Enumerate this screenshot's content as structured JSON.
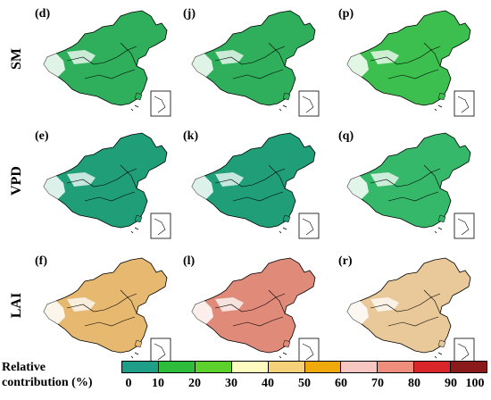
{
  "rows": [
    {
      "label": "SM",
      "panels": [
        "(d)",
        "(j)",
        "(p)"
      ],
      "dominant": [
        "#2fae5c",
        "#2fae5c",
        "#3cbf4e"
      ]
    },
    {
      "label": "VPD",
      "panels": [
        "(e)",
        "(k)",
        "(q)"
      ],
      "dominant": [
        "#1f9e77",
        "#1f9e77",
        "#35b86a"
      ]
    },
    {
      "label": "LAI",
      "panels": [
        "(f)",
        "(l)",
        "(r)"
      ],
      "dominant": [
        "#e6b870",
        "#e08a7a",
        "#e9c99a"
      ]
    }
  ],
  "legend": {
    "title_line1": "Relative",
    "title_line2": "contribution (%)",
    "ticks": [
      "0",
      "10",
      "20",
      "30",
      "40",
      "50",
      "60",
      "70",
      "80",
      "90",
      "100"
    ],
    "colors": [
      "#1f9e89",
      "#2dbd3a",
      "#5cd12c",
      "#fdfbc0",
      "#f5d27a",
      "#f0a90b",
      "#f8c6c0",
      "#ef8e7c",
      "#d8262b",
      "#8b1a1a"
    ]
  }
}
